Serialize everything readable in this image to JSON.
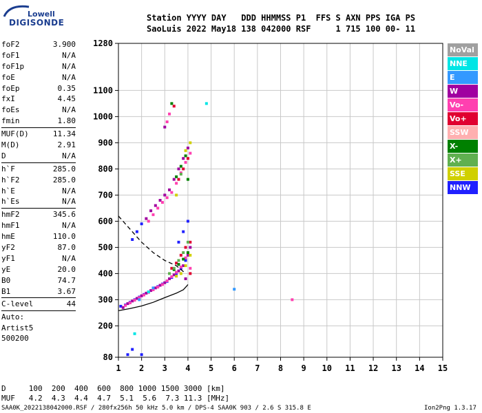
{
  "logo": {
    "line1": "Lowell",
    "line2": "DIGISONDE"
  },
  "header": {
    "line1": "Station YYYY DAY   DDD HHMMSS P1  FFS S AXN PPS IGA PS",
    "line2": "SaoLuis 2022 May18 138 042000 RSF     1 715 100 00- 11"
  },
  "params_groups": [
    [
      {
        "label": "foF2",
        "value": "3.900"
      },
      {
        "label": "foF1",
        "value": "N/A"
      },
      {
        "label": "foF1p",
        "value": "N/A"
      },
      {
        "label": "foE",
        "value": "N/A"
      },
      {
        "label": "foEp",
        "value": "0.35"
      },
      {
        "label": "fxI",
        "value": "4.45"
      },
      {
        "label": "foEs",
        "value": "N/A"
      },
      {
        "label": "fmin",
        "value": "1.80"
      }
    ],
    [
      {
        "label": "MUF(D)",
        "value": "11.34"
      },
      {
        "label": "M(D)",
        "value": "2.91"
      },
      {
        "label": "D",
        "value": "N/A"
      }
    ],
    [
      {
        "label": "h`F",
        "value": "285.0"
      },
      {
        "label": "h`F2",
        "value": "285.0"
      },
      {
        "label": "h`E",
        "value": "N/A"
      },
      {
        "label": "h`Es",
        "value": "N/A"
      }
    ],
    [
      {
        "label": "hmF2",
        "value": "345.6"
      },
      {
        "label": "hmF1",
        "value": "N/A"
      },
      {
        "label": "hmE",
        "value": "110.0"
      },
      {
        "label": "yF2",
        "value": "87.0"
      },
      {
        "label": "yF1",
        "value": "N/A"
      },
      {
        "label": "yE",
        "value": "20.0"
      },
      {
        "label": "B0",
        "value": "74.7"
      },
      {
        "label": "B1",
        "value": "3.67"
      }
    ],
    [
      {
        "label": "C-level",
        "value": "44"
      }
    ]
  ],
  "auto": [
    "Auto:",
    "Artist5",
    "500200"
  ],
  "legend": [
    {
      "label": "NoVal",
      "color": "#a0a0a0"
    },
    {
      "label": "NNE",
      "color": "#00e5e5"
    },
    {
      "label": "E",
      "color": "#3399ff"
    },
    {
      "label": "W",
      "color": "#a000a0"
    },
    {
      "label": "Vo-",
      "color": "#ff40b0"
    },
    {
      "label": "Vo+",
      "color": "#e00030"
    },
    {
      "label": "SSW",
      "color": "#ffb0b0"
    },
    {
      "label": "X-",
      "color": "#008000"
    },
    {
      "label": "X+",
      "color": "#60b050"
    },
    {
      "label": "SSE",
      "color": "#d0d000"
    },
    {
      "label": "NNW",
      "color": "#2020ff"
    }
  ],
  "footer": {
    "d_row": "D     100  200  400  600  800 1000 1500 3000 [km]",
    "muf_row": "MUF   4.2  4.3  4.4  4.7  5.1  5.6  7.3 11.3 [MHz]",
    "info": "SAA0K_2022138042000.RSF / 280fx256h 50 kHz 5.0 km / DPS-4 SAA0K 903 / 2.6 S 315.8 E",
    "version": "Ion2Png 1.3.17"
  },
  "chart_data": {
    "type": "scatter",
    "title": "",
    "xlabel": "",
    "ylabel": "",
    "xlim": [
      1,
      15
    ],
    "ylim": [
      80,
      1280
    ],
    "x_ticks": [
      1,
      2,
      3,
      4,
      5,
      6,
      7,
      8,
      9,
      10,
      11,
      12,
      13,
      14,
      15
    ],
    "y_ticks": [
      80,
      200,
      300,
      400,
      500,
      600,
      700,
      800,
      900,
      1000,
      1100,
      1280
    ],
    "grid": true,
    "legend_position": "right",
    "series": [
      {
        "color": "#2020ff",
        "points": [
          [
            1.1,
            275
          ],
          [
            1.3,
            280
          ],
          [
            1.5,
            290
          ],
          [
            1.7,
            300
          ],
          [
            1.9,
            310
          ],
          [
            2.1,
            320
          ],
          [
            2.3,
            330
          ],
          [
            2.5,
            340
          ],
          [
            2.7,
            350
          ],
          [
            2.9,
            360
          ],
          [
            3.1,
            370
          ],
          [
            3.3,
            385
          ],
          [
            3.5,
            400
          ],
          [
            3.7,
            420
          ],
          [
            3.9,
            450
          ],
          [
            1.6,
            530
          ],
          [
            1.8,
            560
          ],
          [
            2.0,
            590
          ],
          [
            3.6,
            520
          ],
          [
            3.8,
            560
          ],
          [
            4.0,
            600
          ],
          [
            1.4,
            90
          ],
          [
            1.6,
            110
          ],
          [
            2.0,
            90
          ]
        ]
      },
      {
        "color": "#a000a0",
        "points": [
          [
            1.2,
            270
          ],
          [
            1.4,
            285
          ],
          [
            1.6,
            295
          ],
          [
            1.8,
            305
          ],
          [
            2.0,
            315
          ],
          [
            2.2,
            325
          ],
          [
            2.4,
            335
          ],
          [
            2.6,
            345
          ],
          [
            2.8,
            355
          ],
          [
            3.0,
            365
          ],
          [
            3.2,
            380
          ],
          [
            3.4,
            395
          ],
          [
            3.6,
            410
          ],
          [
            3.8,
            430
          ],
          [
            4.0,
            470
          ],
          [
            2.2,
            610
          ],
          [
            2.4,
            640
          ],
          [
            2.6,
            660
          ],
          [
            2.8,
            680
          ],
          [
            3.0,
            700
          ],
          [
            3.2,
            720
          ],
          [
            3.4,
            760
          ],
          [
            3.6,
            800
          ],
          [
            3.8,
            840
          ],
          [
            4.0,
            880
          ],
          [
            4.1,
            500
          ],
          [
            3.9,
            380
          ],
          [
            3.0,
            960
          ]
        ]
      },
      {
        "color": "#ff40b0",
        "points": [
          [
            1.3,
            278
          ],
          [
            1.5,
            288
          ],
          [
            1.7,
            298
          ],
          [
            1.9,
            308
          ],
          [
            2.1,
            318
          ],
          [
            2.3,
            328
          ],
          [
            2.5,
            338
          ],
          [
            2.7,
            348
          ],
          [
            2.9,
            358
          ],
          [
            3.1,
            372
          ],
          [
            3.3,
            388
          ],
          [
            3.5,
            405
          ],
          [
            3.7,
            425
          ],
          [
            3.9,
            460
          ],
          [
            4.1,
            420
          ],
          [
            2.3,
            600
          ],
          [
            2.5,
            625
          ],
          [
            2.7,
            650
          ],
          [
            2.9,
            672
          ],
          [
            3.1,
            690
          ],
          [
            3.3,
            710
          ],
          [
            3.5,
            745
          ],
          [
            3.7,
            785
          ],
          [
            3.9,
            825
          ],
          [
            4.1,
            860
          ],
          [
            3.2,
            1010
          ],
          [
            3.1,
            980
          ],
          [
            8.5,
            300
          ]
        ]
      },
      {
        "color": "#e00030",
        "points": [
          [
            3.3,
            420
          ],
          [
            3.5,
            440
          ],
          [
            3.7,
            470
          ],
          [
            3.9,
            500
          ],
          [
            4.1,
            520
          ],
          [
            3.6,
            760
          ],
          [
            3.8,
            800
          ],
          [
            4.0,
            840
          ],
          [
            3.4,
            1040
          ],
          [
            4.1,
            400
          ]
        ]
      },
      {
        "color": "#008000",
        "points": [
          [
            3.4,
            415
          ],
          [
            3.6,
            435
          ],
          [
            3.8,
            455
          ],
          [
            4.0,
            480
          ],
          [
            3.5,
            770
          ],
          [
            3.7,
            810
          ],
          [
            3.9,
            850
          ],
          [
            4.0,
            760
          ],
          [
            3.3,
            1050
          ]
        ]
      },
      {
        "color": "#60b050",
        "points": [
          [
            3.2,
            400
          ],
          [
            3.4,
            420
          ],
          [
            3.6,
            450
          ],
          [
            3.8,
            480
          ],
          [
            4.0,
            520
          ],
          [
            3.7,
            780
          ]
        ]
      },
      {
        "color": "#d0d000",
        "points": [
          [
            3.5,
            390
          ],
          [
            3.7,
            400
          ],
          [
            3.9,
            430
          ],
          [
            4.1,
            470
          ],
          [
            4.1,
            900
          ],
          [
            3.9,
            870
          ],
          [
            3.5,
            700
          ]
        ]
      },
      {
        "color": "#00e5e5",
        "points": [
          [
            4.8,
            1050
          ],
          [
            2.3,
            330
          ],
          [
            1.7,
            170
          ]
        ]
      },
      {
        "color": "#3399ff",
        "points": [
          [
            6.0,
            340
          ],
          [
            1.9,
            300
          ],
          [
            2.5,
            345
          ]
        ]
      }
    ],
    "curves": [
      {
        "style": "solid",
        "points": [
          [
            1.0,
            258
          ],
          [
            1.5,
            266
          ],
          [
            2.0,
            276
          ],
          [
            2.5,
            290
          ],
          [
            3.0,
            308
          ],
          [
            3.5,
            325
          ],
          [
            3.8,
            338
          ],
          [
            3.95,
            352
          ],
          [
            4.0,
            358
          ]
        ]
      },
      {
        "style": "dashed",
        "points": [
          [
            1.0,
            620
          ],
          [
            1.5,
            570
          ],
          [
            2.0,
            520
          ],
          [
            2.5,
            480
          ],
          [
            3.0,
            450
          ],
          [
            3.5,
            430
          ],
          [
            3.9,
            400
          ]
        ]
      }
    ]
  }
}
